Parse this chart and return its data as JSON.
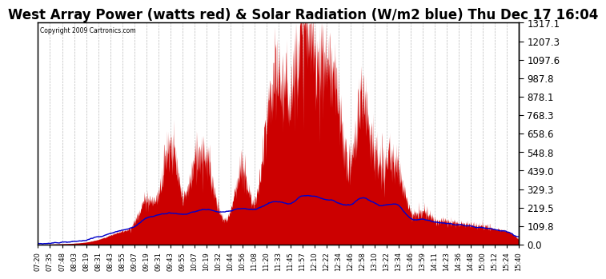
{
  "title": "West Array Power (watts red) & Solar Radiation (W/m2 blue) Thu Dec 17 16:04",
  "copyright_text": "Copyright 2009 Cartronics.com",
  "yticks": [
    0.0,
    109.8,
    219.5,
    329.3,
    439.0,
    548.8,
    658.6,
    768.3,
    878.1,
    987.8,
    1097.6,
    1207.3,
    1317.1
  ],
  "ylim": [
    0,
    1317.1
  ],
  "x_labels": [
    "07:20",
    "07:35",
    "07:48",
    "08:03",
    "08:19",
    "08:31",
    "08:43",
    "08:55",
    "09:07",
    "09:19",
    "09:31",
    "09:43",
    "09:55",
    "10:07",
    "10:19",
    "10:32",
    "10:44",
    "10:56",
    "11:08",
    "11:20",
    "11:33",
    "11:45",
    "11:57",
    "12:10",
    "12:22",
    "12:34",
    "12:46",
    "12:58",
    "13:10",
    "13:22",
    "13:34",
    "13:46",
    "13:59",
    "14:11",
    "14:23",
    "14:36",
    "14:48",
    "15:00",
    "15:12",
    "15:24",
    "15:40"
  ],
  "background_color": "#ffffff",
  "plot_bg_color": "#ffffff",
  "grid_color": "#bbbbbb",
  "fill_color": "#cc0000",
  "line_color": "#0000cc",
  "title_fontsize": 12,
  "tick_fontsize": 8.5,
  "label_fontsize": 6
}
